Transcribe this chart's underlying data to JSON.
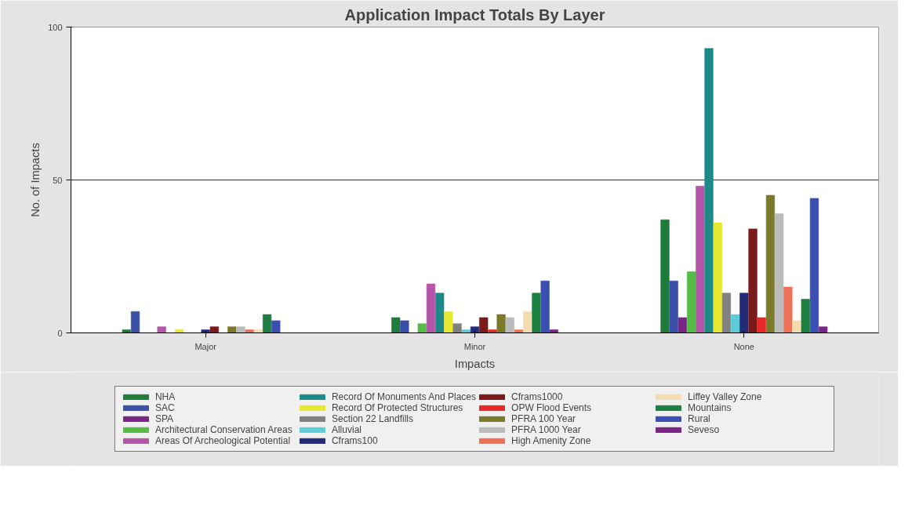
{
  "chart_data": {
    "type": "bar",
    "title": "Application Impact Totals By Layer",
    "xlabel": "Impacts",
    "ylabel": "No. of Impacts",
    "categories": [
      "Major",
      "Minor",
      "None"
    ],
    "ylim": [
      0,
      100
    ],
    "yticks": [
      0,
      50,
      100
    ],
    "grid": "y",
    "legend": "bottom",
    "series": [
      {
        "name": "NHA",
        "color": "#1e7b3a",
        "values": [
          1,
          5,
          37
        ]
      },
      {
        "name": "SAC",
        "color": "#3a4fa8",
        "values": [
          7,
          4,
          17
        ]
      },
      {
        "name": "SPA",
        "color": "#7a2585",
        "values": [
          0,
          0,
          5
        ]
      },
      {
        "name": "Architectural Conservation Areas",
        "color": "#55bb44",
        "values": [
          0,
          3,
          20
        ]
      },
      {
        "name": "Areas Of Archeological Potential",
        "color": "#b555aa",
        "values": [
          2,
          16,
          48
        ]
      },
      {
        "name": "Record Of Monuments And Places",
        "color": "#1e8a88",
        "values": [
          0,
          13,
          93
        ]
      },
      {
        "name": "Record Of Protected Structures",
        "color": "#e8e830",
        "values": [
          1,
          7,
          36
        ]
      },
      {
        "name": "Section 22 Landfills",
        "color": "#808080",
        "values": [
          0,
          3,
          13
        ]
      },
      {
        "name": "Alluvial",
        "color": "#5cccd8",
        "values": [
          0,
          1,
          6
        ]
      },
      {
        "name": "Cframs100",
        "color": "#242a7a",
        "values": [
          1,
          2,
          13
        ]
      },
      {
        "name": "Cframs1000",
        "color": "#7a1a1a",
        "values": [
          2,
          5,
          34
        ]
      },
      {
        "name": "OPW Flood Events",
        "color": "#e82828",
        "values": [
          0,
          1,
          5
        ]
      },
      {
        "name": "PFRA 100 Year",
        "color": "#7a7a2a",
        "values": [
          2,
          6,
          45
        ]
      },
      {
        "name": "PFRA 1000 Year",
        "color": "#bbbbbb",
        "values": [
          2,
          5,
          39
        ]
      },
      {
        "name": "High Amenity Zone",
        "color": "#ee7055",
        "values": [
          1,
          1,
          15
        ]
      },
      {
        "name": "Liffey Valley Zone",
        "color": "#f5dcb0",
        "values": [
          1,
          7,
          4
        ]
      },
      {
        "name": "Mountains",
        "color": "#1e8040",
        "values": [
          6,
          13,
          11
        ]
      },
      {
        "name": "Rural",
        "color": "#3b4fb0",
        "values": [
          4,
          17,
          44
        ]
      },
      {
        "name": "Seveso",
        "color": "#7a2585",
        "values": [
          0,
          1,
          2
        ]
      }
    ]
  }
}
